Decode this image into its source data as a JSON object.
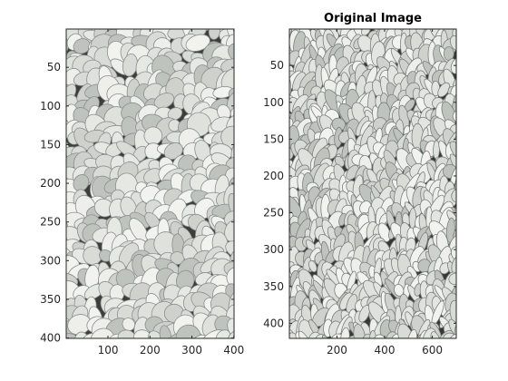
{
  "chart_data": [
    {
      "type": "image",
      "title": "",
      "xlim": [
        0.5,
        400.5
      ],
      "ylim": [
        0.5,
        400.5
      ],
      "y_reversed": true,
      "xticks": [
        100,
        200,
        300,
        400
      ],
      "yticks": [
        50,
        100,
        150,
        200,
        250,
        300,
        350,
        400
      ],
      "image_content": "pebble-stones-crop",
      "colors": {
        "base": "#8b8f8c",
        "stone": "#e6e8e3",
        "shadow": "#3b3e3b"
      }
    },
    {
      "type": "image",
      "title": "Original Image",
      "xlim": [
        0.5,
        700.5
      ],
      "ylim": [
        0.5,
        420.5
      ],
      "y_reversed": true,
      "xticks": [
        200,
        400,
        600
      ],
      "yticks": [
        50,
        100,
        150,
        200,
        250,
        300,
        350,
        400
      ],
      "image_content": "pebble-stones-stretched",
      "colors": {
        "base": "#7c807d",
        "stone": "#e3e5e0",
        "shadow": "#353835"
      }
    }
  ]
}
